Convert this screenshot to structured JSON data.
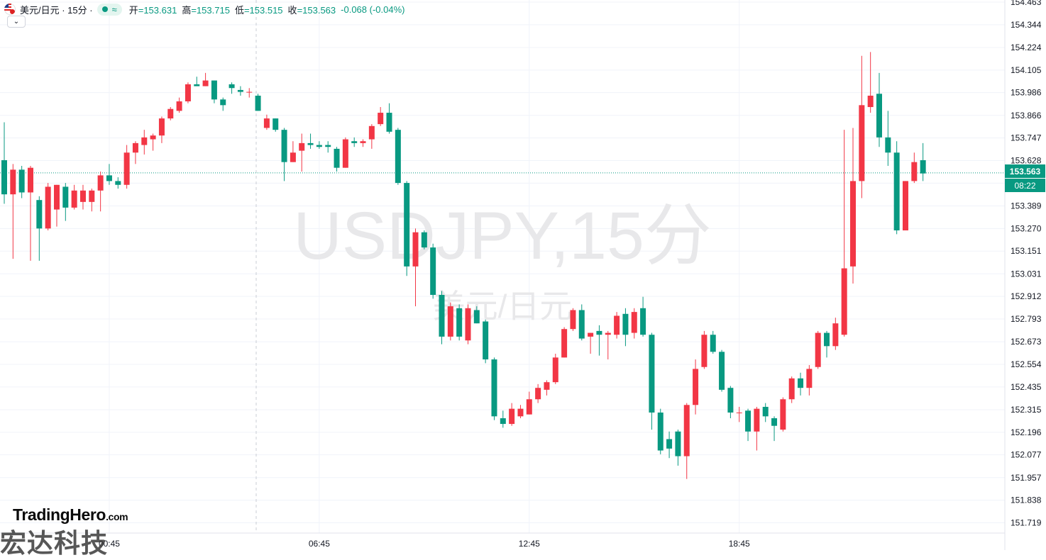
{
  "header": {
    "symbol": "美元/日元 · 15分 ·",
    "status_icon": "wave-icon",
    "open_label": "开",
    "open_value": "=153.631",
    "high_label": "高",
    "high_value": "=153.715",
    "low_label": "低",
    "low_value": "=153.515",
    "close_label": "收",
    "close_value": "=153.563",
    "change": "-0.068 (-0.04%)",
    "collapse_icon": "chevron-down-icon"
  },
  "watermark": {
    "line1": "USDJPY,15分",
    "line2": "美元/日元"
  },
  "last_price": {
    "price": "153.563",
    "countdown": "08:22",
    "color": "#089981"
  },
  "branding": {
    "name": "TradingHero",
    "suffix": ".com",
    "chinese": "宏达科技"
  },
  "colors": {
    "up": "#f23645",
    "down": "#089981",
    "grid": "#f0f3fa"
  },
  "chart_data": {
    "type": "candlestick",
    "title": "USDJPY,15分",
    "ylim": [
      151.68,
      154.49
    ],
    "y_ticks": [
      "154.463",
      "154.344",
      "154.224",
      "154.105",
      "153.986",
      "153.866",
      "153.747",
      "153.628",
      "153.509",
      "153.389",
      "153.270",
      "153.151",
      "153.031",
      "152.912",
      "152.793",
      "152.673",
      "152.554",
      "152.435",
      "152.315",
      "152.196",
      "152.077",
      "151.957",
      "151.838",
      "151.719"
    ],
    "x_tick_labels": [
      {
        "label": "00:45",
        "index": 12
      },
      {
        "label": "06:45",
        "index": 36
      },
      {
        "label": "12:45",
        "index": 60
      },
      {
        "label": "18:45",
        "index": 84
      }
    ],
    "candles": [
      {
        "o": 153.63,
        "h": 153.83,
        "l": 153.4,
        "c": 153.45
      },
      {
        "o": 153.45,
        "h": 153.61,
        "l": 153.11,
        "c": 153.58
      },
      {
        "o": 153.58,
        "h": 153.6,
        "l": 153.43,
        "c": 153.46
      },
      {
        "o": 153.46,
        "h": 153.6,
        "l": 153.1,
        "c": 153.59
      },
      {
        "o": 153.42,
        "h": 153.44,
        "l": 153.1,
        "c": 153.27
      },
      {
        "o": 153.27,
        "h": 153.51,
        "l": 153.26,
        "c": 153.49
      },
      {
        "o": 153.37,
        "h": 153.5,
        "l": 153.28,
        "c": 153.5
      },
      {
        "o": 153.49,
        "h": 153.51,
        "l": 153.31,
        "c": 153.38
      },
      {
        "o": 153.38,
        "h": 153.5,
        "l": 153.37,
        "c": 153.47
      },
      {
        "o": 153.41,
        "h": 153.5,
        "l": 153.37,
        "c": 153.47
      },
      {
        "o": 153.41,
        "h": 153.48,
        "l": 153.36,
        "c": 153.47
      },
      {
        "o": 153.47,
        "h": 153.57,
        "l": 153.36,
        "c": 153.55
      },
      {
        "o": 153.55,
        "h": 153.61,
        "l": 153.5,
        "c": 153.52
      },
      {
        "o": 153.52,
        "h": 153.54,
        "l": 153.48,
        "c": 153.5
      },
      {
        "o": 153.5,
        "h": 153.71,
        "l": 153.48,
        "c": 153.67
      },
      {
        "o": 153.67,
        "h": 153.73,
        "l": 153.61,
        "c": 153.72
      },
      {
        "o": 153.71,
        "h": 153.79,
        "l": 153.66,
        "c": 153.75
      },
      {
        "o": 153.74,
        "h": 153.77,
        "l": 153.68,
        "c": 153.76
      },
      {
        "o": 153.76,
        "h": 153.86,
        "l": 153.72,
        "c": 153.85
      },
      {
        "o": 153.85,
        "h": 153.91,
        "l": 153.84,
        "c": 153.9
      },
      {
        "o": 153.89,
        "h": 153.96,
        "l": 153.88,
        "c": 153.94
      },
      {
        "o": 153.94,
        "h": 154.04,
        "l": 153.93,
        "c": 154.03
      },
      {
        "o": 154.03,
        "h": 154.07,
        "l": 154.02,
        "c": 154.02
      },
      {
        "o": 154.02,
        "h": 154.09,
        "l": 154.02,
        "c": 154.05
      },
      {
        "o": 154.05,
        "h": 154.05,
        "l": 153.93,
        "c": 153.95
      },
      {
        "o": 153.95,
        "h": 153.96,
        "l": 153.89,
        "c": 153.92
      },
      {
        "o": 154.03,
        "h": 154.04,
        "l": 153.98,
        "c": 154.01
      },
      {
        "o": 154.0,
        "h": 154.02,
        "l": 153.97,
        "c": 153.99
      },
      {
        "o": 153.99,
        "h": 154.01,
        "l": 153.96,
        "c": 153.99
      },
      {
        "o": 153.97,
        "h": 153.98,
        "l": 153.89,
        "c": 153.89
      },
      {
        "o": 153.8,
        "h": 153.87,
        "l": 153.79,
        "c": 153.85
      },
      {
        "o": 153.85,
        "h": 153.85,
        "l": 153.78,
        "c": 153.79
      },
      {
        "o": 153.79,
        "h": 153.8,
        "l": 153.52,
        "c": 153.62
      },
      {
        "o": 153.62,
        "h": 153.73,
        "l": 153.62,
        "c": 153.67
      },
      {
        "o": 153.68,
        "h": 153.77,
        "l": 153.57,
        "c": 153.72
      },
      {
        "o": 153.72,
        "h": 153.77,
        "l": 153.69,
        "c": 153.71
      },
      {
        "o": 153.71,
        "h": 153.73,
        "l": 153.69,
        "c": 153.7
      },
      {
        "o": 153.71,
        "h": 153.73,
        "l": 153.67,
        "c": 153.7
      },
      {
        "o": 153.69,
        "h": 153.7,
        "l": 153.57,
        "c": 153.59
      },
      {
        "o": 153.59,
        "h": 153.75,
        "l": 153.59,
        "c": 153.74
      },
      {
        "o": 153.73,
        "h": 153.75,
        "l": 153.7,
        "c": 153.72
      },
      {
        "o": 153.72,
        "h": 153.74,
        "l": 153.7,
        "c": 153.73
      },
      {
        "o": 153.74,
        "h": 153.82,
        "l": 153.69,
        "c": 153.81
      },
      {
        "o": 153.82,
        "h": 153.91,
        "l": 153.81,
        "c": 153.88
      },
      {
        "o": 153.88,
        "h": 153.93,
        "l": 153.77,
        "c": 153.78
      },
      {
        "o": 153.79,
        "h": 153.8,
        "l": 153.5,
        "c": 153.51
      },
      {
        "o": 153.51,
        "h": 153.52,
        "l": 153.02,
        "c": 153.07
      },
      {
        "o": 153.07,
        "h": 153.27,
        "l": 152.86,
        "c": 153.25
      },
      {
        "o": 153.25,
        "h": 153.26,
        "l": 153.16,
        "c": 153.17
      },
      {
        "o": 153.17,
        "h": 153.19,
        "l": 152.9,
        "c": 152.92
      },
      {
        "o": 152.92,
        "h": 152.94,
        "l": 152.66,
        "c": 152.7
      },
      {
        "o": 152.7,
        "h": 152.88,
        "l": 152.68,
        "c": 152.86
      },
      {
        "o": 152.85,
        "h": 152.87,
        "l": 152.68,
        "c": 152.7
      },
      {
        "o": 152.68,
        "h": 152.87,
        "l": 152.66,
        "c": 152.85
      },
      {
        "o": 152.84,
        "h": 152.86,
        "l": 152.77,
        "c": 152.77
      },
      {
        "o": 152.78,
        "h": 152.79,
        "l": 152.56,
        "c": 152.58
      },
      {
        "o": 152.58,
        "h": 152.59,
        "l": 152.26,
        "c": 152.28
      },
      {
        "o": 152.27,
        "h": 152.31,
        "l": 152.22,
        "c": 152.24
      },
      {
        "o": 152.24,
        "h": 152.35,
        "l": 152.23,
        "c": 152.32
      },
      {
        "o": 152.28,
        "h": 152.34,
        "l": 152.27,
        "c": 152.32
      },
      {
        "o": 152.29,
        "h": 152.41,
        "l": 152.29,
        "c": 152.37
      },
      {
        "o": 152.37,
        "h": 152.45,
        "l": 152.35,
        "c": 152.43
      },
      {
        "o": 152.42,
        "h": 152.47,
        "l": 152.39,
        "c": 152.46
      },
      {
        "o": 152.46,
        "h": 152.61,
        "l": 152.45,
        "c": 152.59
      },
      {
        "o": 152.59,
        "h": 152.75,
        "l": 152.59,
        "c": 152.74
      },
      {
        "o": 152.74,
        "h": 152.85,
        "l": 152.73,
        "c": 152.84
      },
      {
        "o": 152.84,
        "h": 152.87,
        "l": 152.68,
        "c": 152.69
      },
      {
        "o": 152.7,
        "h": 152.72,
        "l": 152.61,
        "c": 152.72
      },
      {
        "o": 152.73,
        "h": 152.76,
        "l": 152.6,
        "c": 152.71
      },
      {
        "o": 152.71,
        "h": 152.73,
        "l": 152.58,
        "c": 152.72
      },
      {
        "o": 152.71,
        "h": 152.83,
        "l": 152.69,
        "c": 152.81
      },
      {
        "o": 152.82,
        "h": 152.85,
        "l": 152.65,
        "c": 152.71
      },
      {
        "o": 152.72,
        "h": 152.85,
        "l": 152.69,
        "c": 152.83
      },
      {
        "o": 152.85,
        "h": 152.91,
        "l": 152.7,
        "c": 152.71
      },
      {
        "o": 152.71,
        "h": 152.72,
        "l": 152.21,
        "c": 152.3
      },
      {
        "o": 152.3,
        "h": 152.32,
        "l": 152.08,
        "c": 152.1
      },
      {
        "o": 152.16,
        "h": 152.2,
        "l": 152.06,
        "c": 152.11
      },
      {
        "o": 152.2,
        "h": 152.21,
        "l": 152.02,
        "c": 152.07
      },
      {
        "o": 152.07,
        "h": 152.35,
        "l": 151.95,
        "c": 152.34
      },
      {
        "o": 152.34,
        "h": 152.58,
        "l": 152.29,
        "c": 152.53
      },
      {
        "o": 152.54,
        "h": 152.73,
        "l": 152.53,
        "c": 152.71
      },
      {
        "o": 152.71,
        "h": 152.73,
        "l": 152.61,
        "c": 152.62
      },
      {
        "o": 152.62,
        "h": 152.63,
        "l": 152.41,
        "c": 152.42
      },
      {
        "o": 152.43,
        "h": 152.44,
        "l": 152.27,
        "c": 152.3
      },
      {
        "o": 152.3,
        "h": 152.33,
        "l": 152.25,
        "c": 152.3
      },
      {
        "o": 152.31,
        "h": 152.32,
        "l": 152.15,
        "c": 152.2
      },
      {
        "o": 152.2,
        "h": 152.33,
        "l": 152.1,
        "c": 152.32
      },
      {
        "o": 152.33,
        "h": 152.35,
        "l": 152.25,
        "c": 152.28
      },
      {
        "o": 152.27,
        "h": 152.28,
        "l": 152.15,
        "c": 152.23
      },
      {
        "o": 152.21,
        "h": 152.38,
        "l": 152.2,
        "c": 152.37
      },
      {
        "o": 152.37,
        "h": 152.49,
        "l": 152.35,
        "c": 152.48
      },
      {
        "o": 152.48,
        "h": 152.51,
        "l": 152.39,
        "c": 152.43
      },
      {
        "o": 152.43,
        "h": 152.55,
        "l": 152.39,
        "c": 152.53
      },
      {
        "o": 152.54,
        "h": 152.73,
        "l": 152.53,
        "c": 152.72
      },
      {
        "o": 152.72,
        "h": 152.73,
        "l": 152.59,
        "c": 152.65
      },
      {
        "o": 152.65,
        "h": 152.8,
        "l": 152.63,
        "c": 152.77
      },
      {
        "o": 152.71,
        "h": 153.79,
        "l": 152.7,
        "c": 153.06
      },
      {
        "o": 153.07,
        "h": 153.8,
        "l": 152.98,
        "c": 153.52
      },
      {
        "o": 153.52,
        "h": 154.18,
        "l": 153.43,
        "c": 153.92
      },
      {
        "o": 153.91,
        "h": 154.2,
        "l": 153.88,
        "c": 153.97
      },
      {
        "o": 153.98,
        "h": 154.09,
        "l": 153.7,
        "c": 153.75
      },
      {
        "o": 153.75,
        "h": 153.89,
        "l": 153.6,
        "c": 153.67
      },
      {
        "o": 153.67,
        "h": 153.73,
        "l": 153.24,
        "c": 153.26
      },
      {
        "o": 153.26,
        "h": 153.52,
        "l": 153.26,
        "c": 153.52
      },
      {
        "o": 153.52,
        "h": 153.67,
        "l": 153.51,
        "c": 153.62
      },
      {
        "o": 153.63,
        "h": 153.72,
        "l": 153.52,
        "c": 153.56
      }
    ]
  }
}
